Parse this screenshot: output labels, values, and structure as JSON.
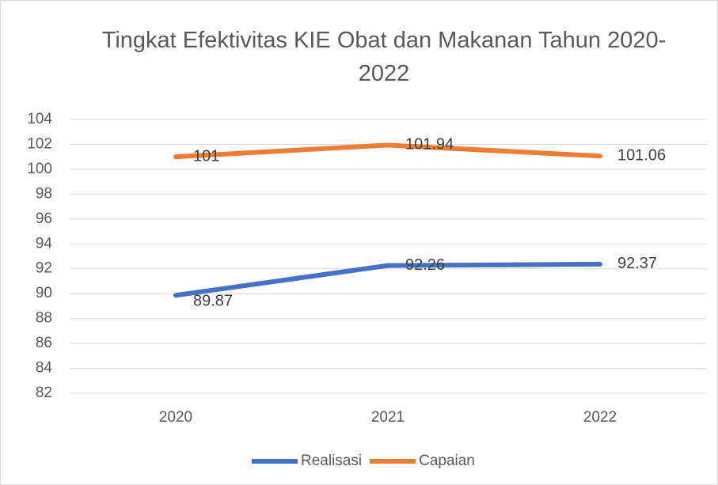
{
  "chart_data": {
    "type": "line",
    "title": "Tingkat Efektivitas KIE Obat dan Makanan Tahun 2020-2022",
    "categories": [
      "2020",
      "2021",
      "2022"
    ],
    "series": [
      {
        "name": "Realisasi",
        "color": "#4472c4",
        "values": [
          89.87,
          92.26,
          92.37
        ]
      },
      {
        "name": "Capaian",
        "color": "#ed7d31",
        "values": [
          101,
          101.94,
          101.06
        ]
      }
    ],
    "ylim": [
      82,
      104
    ],
    "yticks": [
      82,
      84,
      86,
      88,
      90,
      92,
      94,
      96,
      98,
      100,
      102,
      104
    ],
    "grid": true,
    "legend": "bottom"
  }
}
